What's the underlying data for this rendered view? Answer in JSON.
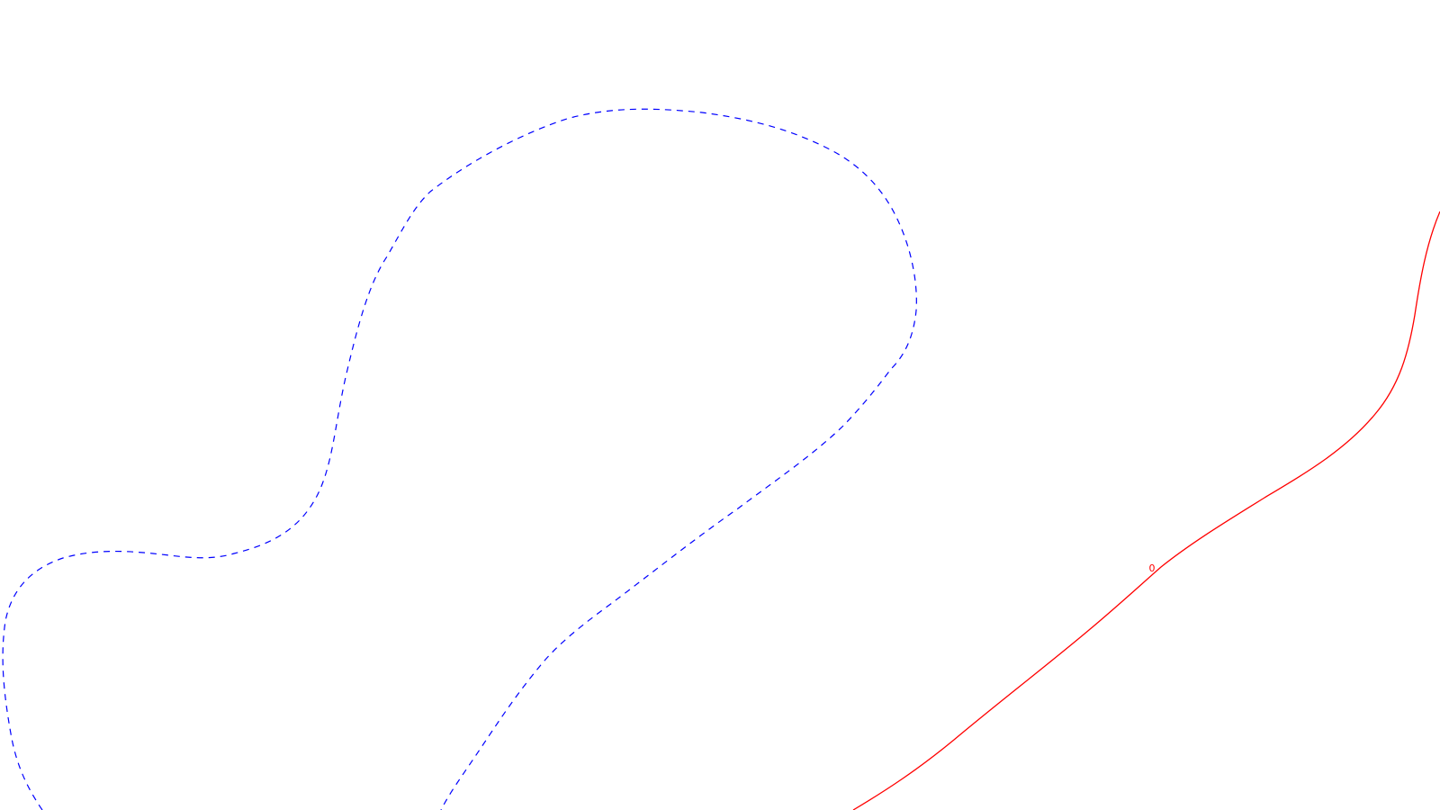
{
  "map": {
    "background_color": "#ffffff",
    "contours": [
      {
        "id": "dashed-blue",
        "style": "dashed",
        "color": "#0000ff",
        "label": ""
      },
      {
        "id": "solid-red",
        "style": "solid",
        "color": "#ff0000",
        "label": "0"
      }
    ]
  }
}
